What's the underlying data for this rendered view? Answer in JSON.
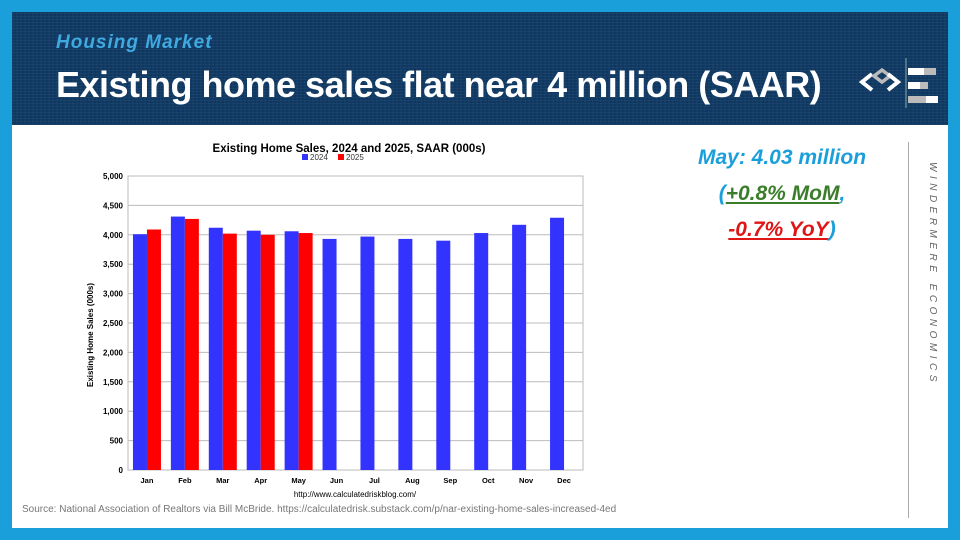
{
  "header": {
    "kicker": "Housing Market",
    "title": "Existing home sales flat near 4 million (SAAR)"
  },
  "callout": {
    "line1": "May: 4.03 million",
    "open": "(",
    "mom": "+0.8% MoM",
    "comma": ",",
    "yoy": "-0.7% YoY",
    "close": ")"
  },
  "brand": "WINDERMERE ECONOMICS",
  "source": "Source: National Association of Realtors via Bill McBride. https://calculatedrisk.substack.com/p/nar-existing-home-sales-increased-4ed",
  "colors": {
    "s2024": "#3333ff",
    "s2025": "#ff0000",
    "frame": "#1a9fdb"
  },
  "chart_data": {
    "type": "bar",
    "title": "Existing Home Sales,  2024 and 2025, SAAR (000s)",
    "ylabel": "Existing Home Sales (000s)",
    "xlabel": "http://www.calculatedriskblog.com/",
    "ylim": [
      0,
      5000
    ],
    "yticks": [
      "0",
      "500",
      "1,000",
      "1,500",
      "2,000",
      "2,500",
      "3,000",
      "3,500",
      "4,000",
      "4,500",
      "5,000"
    ],
    "categories": [
      "Jan",
      "Feb",
      "Mar",
      "Apr",
      "May",
      "Jun",
      "Jul",
      "Aug",
      "Sep",
      "Oct",
      "Nov",
      "Dec"
    ],
    "legend_position": "top",
    "series": [
      {
        "name": "2024",
        "values": [
          4010,
          4310,
          4120,
          4070,
          4060,
          3930,
          3970,
          3930,
          3900,
          4030,
          4170,
          4290
        ]
      },
      {
        "name": "2025",
        "values": [
          4090,
          4270,
          4020,
          4000,
          4030,
          null,
          null,
          null,
          null,
          null,
          null,
          null
        ]
      }
    ]
  }
}
